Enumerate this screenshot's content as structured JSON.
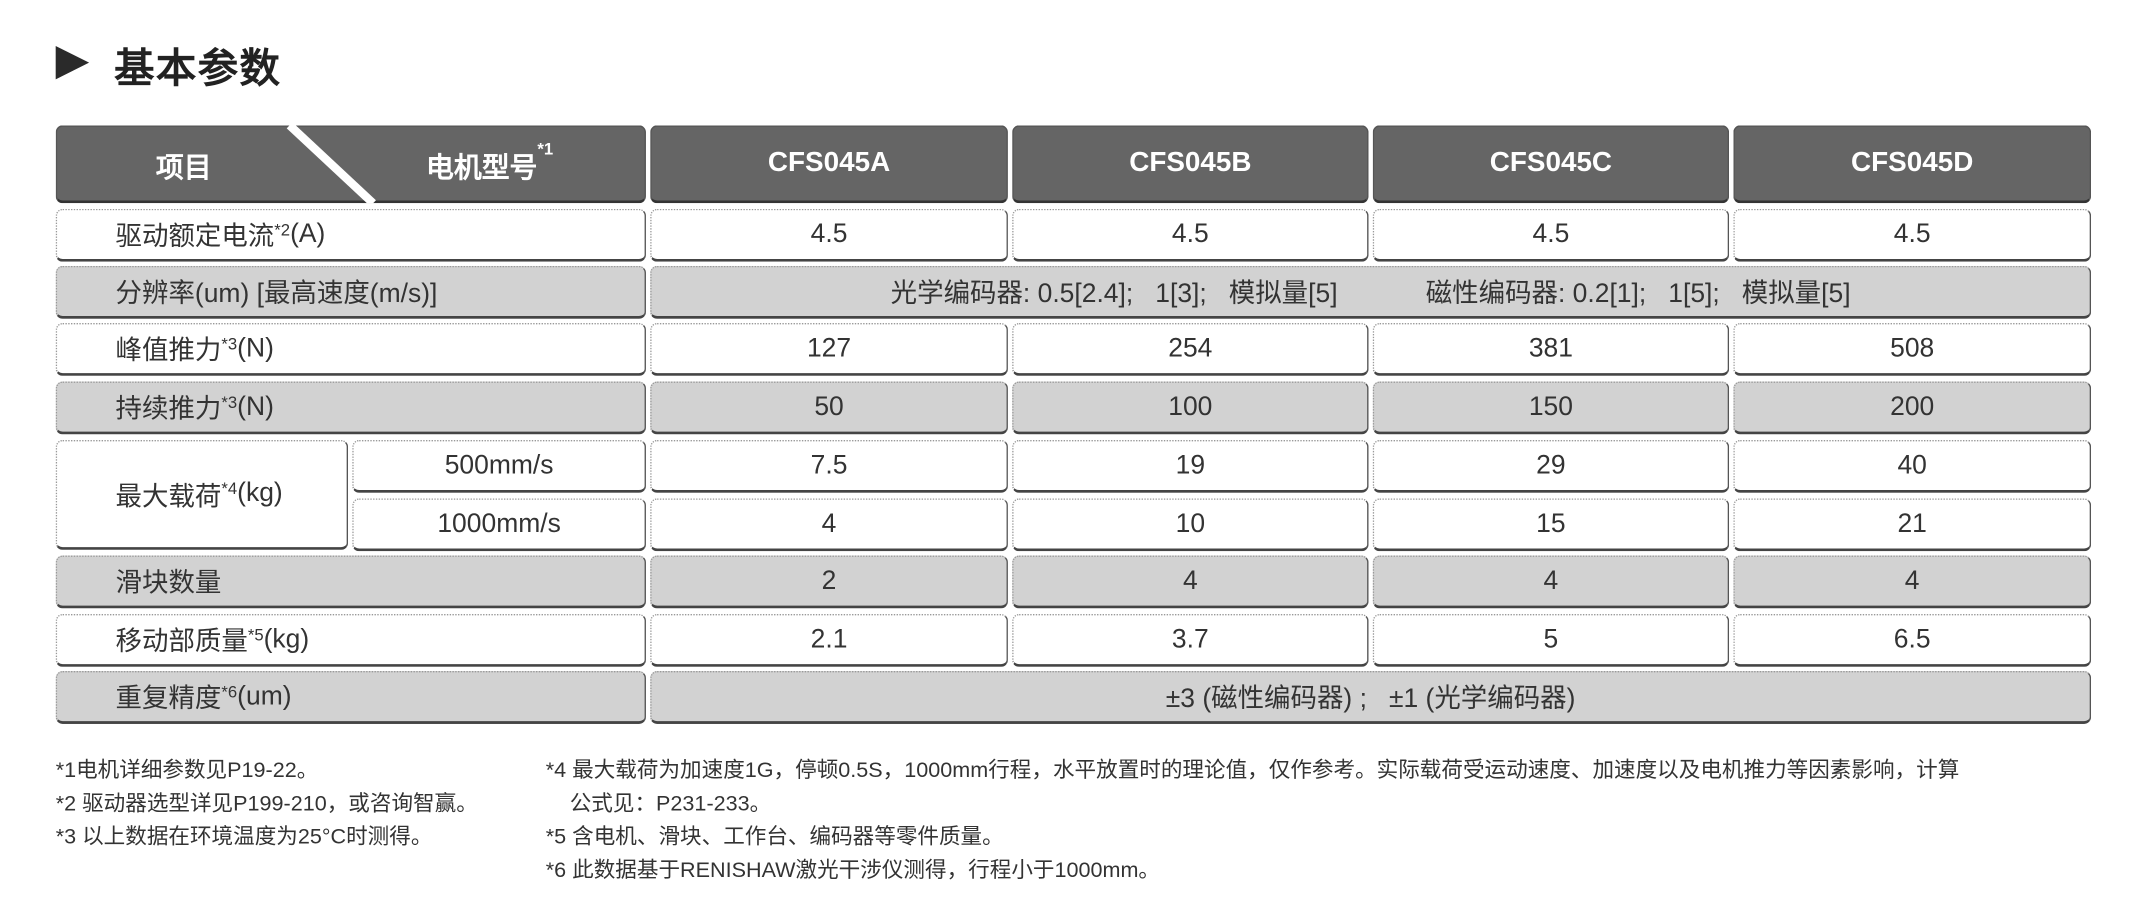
{
  "title": "基本参数",
  "title_icon": "triangle-arrow-icon",
  "header": {
    "item_label": "项目",
    "model_label": "电机型号",
    "model_note": "*1",
    "models": [
      "CFS045A",
      "CFS045B",
      "CFS045C",
      "CFS045D"
    ]
  },
  "rows": [
    {
      "label": "驱动额定电流",
      "note": "*2",
      "unit": "(A)",
      "values": [
        "4.5",
        "4.5",
        "4.5",
        "4.5"
      ]
    },
    {
      "label": "分辨率(um)  [最高速度(m/s)]",
      "note": "",
      "unit": "",
      "span_text": "光学编码器: 0.5[2.4];   1[3];   模拟量[5]            磁性编码器: 0.2[1];   1[5];   模拟量[5]"
    },
    {
      "label": "峰值推力",
      "note": "*3",
      "unit": "(N)",
      "values": [
        "127",
        "254",
        "381",
        "508"
      ]
    },
    {
      "label": "持续推力",
      "note": "*3",
      "unit": "(N)",
      "values": [
        "50",
        "100",
        "150",
        "200"
      ]
    },
    {
      "label": "最大载荷",
      "note": "*4",
      "unit": "(kg)",
      "sub_rows": [
        {
          "label": "500mm/s",
          "values": [
            "7.5",
            "19",
            "29",
            "40"
          ]
        },
        {
          "label": "1000mm/s",
          "values": [
            "4",
            "10",
            "15",
            "21"
          ]
        }
      ]
    },
    {
      "label": "滑块数量",
      "note": "",
      "unit": "",
      "values": [
        "2",
        "4",
        "4",
        "4"
      ]
    },
    {
      "label": "移动部质量",
      "note": "*5",
      "unit": "(kg)",
      "values": [
        "2.1",
        "3.7",
        "5",
        "6.5"
      ]
    },
    {
      "label": "重复精度",
      "note": "*6",
      "unit": "(um)",
      "span_text": "±3 (磁性编码器) ;   ±1 (光学编码器)"
    }
  ],
  "footnotes_left": [
    "*1电机详细参数见P19-22。",
    "*2 驱动器选型详见P199-210，或咨询智赢。",
    "*3 以上数据在环境温度为25°C时测得。"
  ],
  "footnotes_right": [
    "*4 最大载荷为加速度1G，停顿0.5S，1000mm行程，水平放置时的理论值，仅作参考。实际载荷受运动速度、加速度以及电机推力等因素影响，计算",
    "    公式见：P231-233。",
    "*5 含电机、滑块、工作台、编码器等零件质量。",
    "*6 此数据基于RENISHAW激光干涉仪测得，行程小于1000mm。"
  ],
  "colors": {
    "header": "#656565",
    "gray_row": "#d2d2d2",
    "white_row": "#ffffff"
  }
}
